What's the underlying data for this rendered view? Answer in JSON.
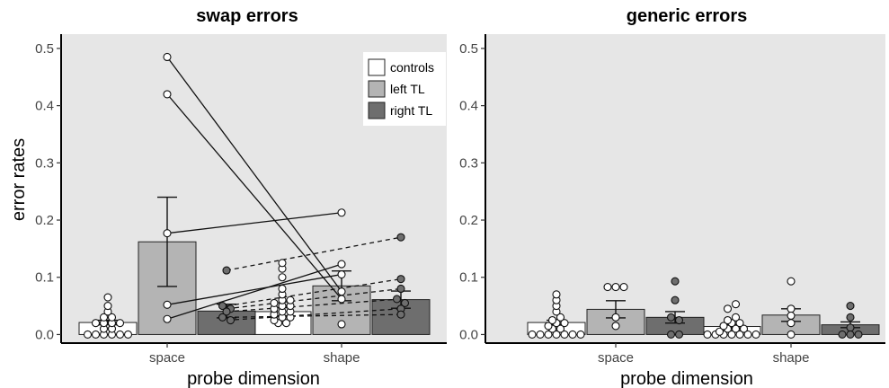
{
  "chart_data": [
    {
      "type": "bar",
      "title": "swap errors",
      "xlabel": "probe dimension",
      "ylabel": "error rates",
      "categories": [
        "space",
        "shape"
      ],
      "ylim": [
        -0.015,
        0.525
      ],
      "yticks": [
        "0.0",
        "0.1",
        "0.2",
        "0.3",
        "0.4",
        "0.5"
      ],
      "legend_position": "top-right",
      "series": [
        {
          "name": "controls",
          "color": "#ffffff",
          "values": [
            0.021,
            0.04
          ],
          "err": [
            0.004,
            0.007
          ],
          "points": [
            [
              0.0,
              0.0,
              0.0,
              0.0,
              0.0,
              0.0,
              0.01,
              0.01,
              0.02,
              0.02,
              0.02,
              0.02,
              0.03,
              0.03,
              0.04,
              0.05,
              0.065
            ],
            [
              0.02,
              0.02,
              0.025,
              0.03,
              0.03,
              0.035,
              0.04,
              0.04,
              0.045,
              0.05,
              0.05,
              0.055,
              0.06,
              0.06,
              0.07,
              0.08,
              0.1,
              0.115,
              0.125
            ]
          ]
        },
        {
          "name": "left TL",
          "color": "#b4b4b4",
          "values": [
            0.162,
            0.085
          ],
          "err": [
            0.078,
            0.026
          ],
          "points": [
            [
              0.485,
              0.42,
              0.177,
              0.052,
              0.027
            ],
            [
              0.213,
              0.123,
              0.105,
              0.075,
              0.062,
              0.018
            ]
          ]
        },
        {
          "name": "right TL",
          "color": "#6e6e6e",
          "values": [
            0.041,
            0.061
          ],
          "err": [
            0.012,
            0.015
          ],
          "points": [
            [
              0.112,
              0.05,
              0.045,
              0.04,
              0.03,
              0.025
            ],
            [
              0.17,
              0.097,
              0.08,
              0.062,
              0.055,
              0.045,
              0.035
            ]
          ]
        }
      ],
      "paired_lines": [
        {
          "group": "left TL",
          "style": "solid",
          "values": [
            0.485,
            0.075
          ]
        },
        {
          "group": "left TL",
          "style": "solid",
          "values": [
            0.42,
            0.062
          ]
        },
        {
          "group": "left TL",
          "style": "solid",
          "values": [
            0.177,
            0.213
          ]
        },
        {
          "group": "left TL",
          "style": "solid",
          "values": [
            0.052,
            0.105
          ]
        },
        {
          "group": "left TL",
          "style": "solid",
          "values": [
            0.027,
            0.123
          ]
        },
        {
          "group": "right TL",
          "style": "dashed",
          "values": [
            0.112,
            0.17
          ]
        },
        {
          "group": "right TL",
          "style": "dashed",
          "values": [
            0.05,
            0.097
          ]
        },
        {
          "group": "right TL",
          "style": "dashed",
          "values": [
            0.045,
            0.08
          ]
        },
        {
          "group": "right TL",
          "style": "dashed",
          "values": [
            0.04,
            0.062
          ]
        },
        {
          "group": "right TL",
          "style": "dashed",
          "values": [
            0.03,
            0.035
          ]
        },
        {
          "group": "right TL",
          "style": "dashed",
          "values": [
            0.025,
            0.045
          ]
        }
      ]
    },
    {
      "type": "bar",
      "title": "generic errors",
      "xlabel": "probe dimension",
      "ylabel": "",
      "categories": [
        "space",
        "shape"
      ],
      "ylim": [
        -0.015,
        0.525
      ],
      "yticks": [
        "0.0",
        "0.1",
        "0.2",
        "0.3",
        "0.4",
        "0.5"
      ],
      "series": [
        {
          "name": "controls",
          "color": "#ffffff",
          "values": [
            0.021,
            0.014
          ],
          "err": [
            0.004,
            0.003
          ],
          "points": [
            [
              0.0,
              0.0,
              0.0,
              0.0,
              0.0,
              0.0,
              0.0,
              0.01,
              0.01,
              0.015,
              0.02,
              0.02,
              0.025,
              0.03,
              0.04,
              0.05,
              0.06,
              0.07
            ],
            [
              0.0,
              0.0,
              0.0,
              0.0,
              0.0,
              0.0,
              0.0,
              0.005,
              0.01,
              0.01,
              0.01,
              0.015,
              0.02,
              0.02,
              0.025,
              0.03,
              0.045,
              0.053
            ]
          ]
        },
        {
          "name": "left TL",
          "color": "#b4b4b4",
          "values": [
            0.044,
            0.034
          ],
          "err": [
            0.015,
            0.011
          ],
          "points": [
            [
              0.083,
              0.083,
              0.083,
              0.03,
              0.015
            ],
            [
              0.093,
              0.045,
              0.033,
              0.02,
              0.0
            ]
          ]
        },
        {
          "name": "right TL",
          "color": "#6e6e6e",
          "values": [
            0.03,
            0.017
          ],
          "err": [
            0.01,
            0.005
          ],
          "points": [
            [
              0.093,
              0.06,
              0.03,
              0.025,
              0.0,
              0.0
            ],
            [
              0.05,
              0.03,
              0.012,
              0.0,
              0.0,
              0.0
            ]
          ]
        }
      ]
    }
  ]
}
